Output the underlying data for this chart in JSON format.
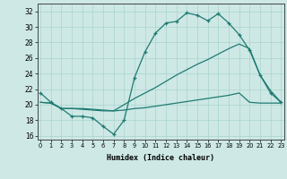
{
  "xlabel": "Humidex (Indice chaleur)",
  "x_ticks": [
    0,
    1,
    2,
    3,
    4,
    5,
    6,
    7,
    8,
    9,
    10,
    11,
    12,
    13,
    14,
    15,
    16,
    17,
    18,
    19,
    20,
    21,
    22,
    23
  ],
  "ylim": [
    15.5,
    33.0
  ],
  "yticks": [
    16,
    18,
    20,
    22,
    24,
    26,
    28,
    30,
    32
  ],
  "xlim": [
    -0.3,
    23.3
  ],
  "bg_color": "#cde8e5",
  "line_color": "#1e7b72",
  "line1_x": [
    0,
    1,
    2,
    3,
    4,
    5,
    6,
    7,
    8,
    9,
    10,
    11,
    12,
    13,
    14,
    15,
    16,
    17,
    18,
    19,
    20,
    21,
    22,
    23
  ],
  "line1_y": [
    21.5,
    20.3,
    19.5,
    18.5,
    18.5,
    18.3,
    17.2,
    16.2,
    18.0,
    23.5,
    26.8,
    29.2,
    30.5,
    30.7,
    31.8,
    31.5,
    30.8,
    31.7,
    30.5,
    29.0,
    27.0,
    23.8,
    21.5,
    20.3
  ],
  "line2_x": [
    0,
    1,
    2,
    3,
    4,
    5,
    6,
    7,
    8,
    9,
    10,
    11,
    12,
    13,
    14,
    15,
    16,
    17,
    18,
    19,
    20,
    21,
    22,
    23
  ],
  "line2_y": [
    20.3,
    20.2,
    19.5,
    19.5,
    19.4,
    19.3,
    19.2,
    19.2,
    19.3,
    19.5,
    19.6,
    19.8,
    20.0,
    20.2,
    20.4,
    20.6,
    20.8,
    21.0,
    21.2,
    21.5,
    20.3,
    20.2,
    20.2,
    20.2
  ],
  "line3_x": [
    0,
    1,
    2,
    3,
    4,
    5,
    6,
    7,
    8,
    9,
    10,
    11,
    12,
    13,
    14,
    15,
    16,
    17,
    18,
    19,
    20,
    21,
    22,
    23
  ],
  "line3_y": [
    20.3,
    20.2,
    19.5,
    19.5,
    19.5,
    19.4,
    19.3,
    19.2,
    20.0,
    20.8,
    21.5,
    22.2,
    23.0,
    23.8,
    24.5,
    25.2,
    25.8,
    26.5,
    27.2,
    27.8,
    27.2,
    23.8,
    21.8,
    20.3
  ]
}
